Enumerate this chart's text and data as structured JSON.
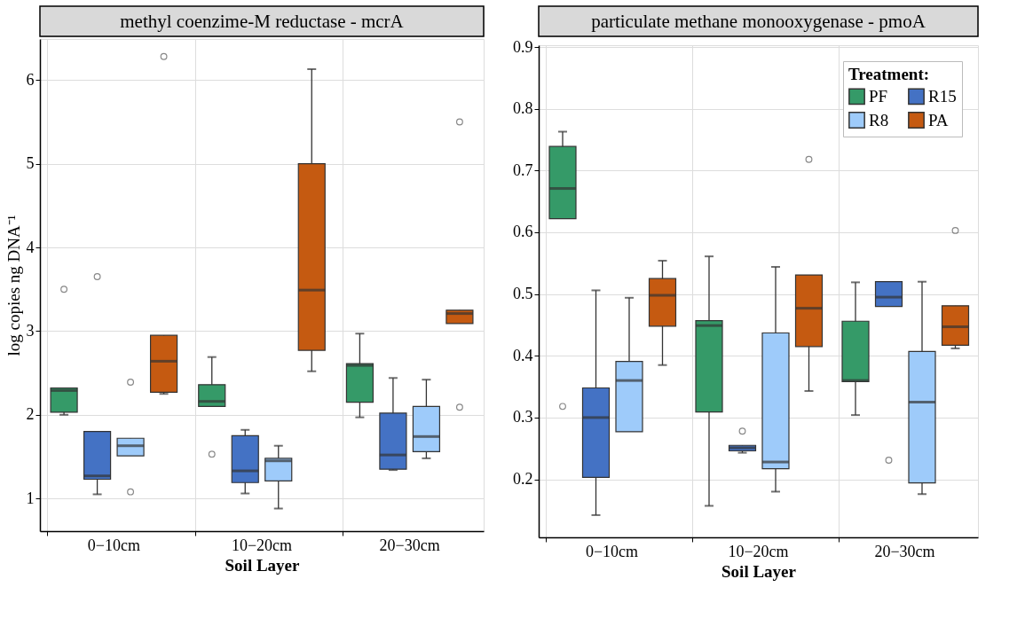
{
  "chart_data": [
    {
      "type": "box",
      "title": "methyl coenzime-M reductase - mcrA",
      "xlabel": "Soil Layer",
      "ylabel": "log copies ng DNA⁻¹",
      "categories": [
        "0−10cm",
        "10−20cm",
        "20−30cm"
      ],
      "ylim": [
        0.61,
        6.49
      ],
      "yticks": [
        1,
        2,
        3,
        4,
        5,
        6
      ],
      "grid": true,
      "series": [
        {
          "color": "#359a68",
          "boxes": [
            {
              "low": 2.0,
              "q1": 2.03,
              "median": 2.29,
              "q3": 2.32,
              "high": 2.32,
              "outliers": [
                3.5
              ]
            },
            {
              "low": 2.1,
              "q1": 2.1,
              "median": 2.16,
              "q3": 2.36,
              "high": 2.69,
              "outliers": [
                1.53
              ]
            },
            {
              "low": 1.97,
              "q1": 2.15,
              "median": 2.59,
              "q3": 2.61,
              "high": 2.97
            }
          ]
        },
        {
          "color": "#4472c4",
          "boxes": [
            {
              "low": 1.05,
              "q1": 1.23,
              "median": 1.27,
              "q3": 1.8,
              "high": 1.8,
              "outliers": [
                3.65
              ]
            },
            {
              "low": 1.06,
              "q1": 1.19,
              "median": 1.33,
              "q3": 1.75,
              "high": 1.82
            },
            {
              "low": 1.34,
              "q1": 1.35,
              "median": 1.52,
              "q3": 2.02,
              "high": 2.44
            }
          ]
        },
        {
          "color": "#9ecbfa",
          "boxes": [
            {
              "low": 1.51,
              "q1": 1.51,
              "median": 1.63,
              "q3": 1.72,
              "high": 1.72,
              "outliers": [
                2.39,
                1.08
              ]
            },
            {
              "low": 0.88,
              "q1": 1.21,
              "median": 1.45,
              "q3": 1.48,
              "high": 1.63
            },
            {
              "low": 1.48,
              "q1": 1.56,
              "median": 1.74,
              "q3": 2.1,
              "high": 2.42
            }
          ]
        },
        {
          "color": "#c55a11",
          "boxes": [
            {
              "low": 2.25,
              "q1": 2.27,
              "median": 2.64,
              "q3": 2.95,
              "high": 2.95,
              "outliers": [
                6.28
              ]
            },
            {
              "low": 2.52,
              "q1": 2.77,
              "median": 3.49,
              "q3": 5.0,
              "high": 6.13
            },
            {
              "low": 3.09,
              "q1": 3.09,
              "median": 3.21,
              "q3": 3.25,
              "high": 3.25,
              "outliers": [
                5.5,
                2.09
              ]
            }
          ]
        }
      ]
    },
    {
      "type": "box",
      "title": "particulate methane monooxygenase - pmoA",
      "xlabel": "Soil Layer",
      "categories": [
        "0−10cm",
        "10−20cm",
        "20−30cm"
      ],
      "ylim": [
        0.106,
        0.903
      ],
      "yticks": [
        0.2,
        0.3,
        0.4,
        0.5,
        0.6,
        0.7,
        0.8,
        0.9
      ],
      "grid": true,
      "legend": "top right",
      "legend_title": "Treatment:",
      "series": [
        {
          "name": "PF",
          "color": "#359a68",
          "boxes": [
            {
              "low": 0.622,
              "q1": 0.622,
              "median": 0.671,
              "q3": 0.739,
              "high": 0.763,
              "outliers": [
                0.318
              ]
            },
            {
              "low": 0.157,
              "q1": 0.309,
              "median": 0.449,
              "q3": 0.457,
              "high": 0.561
            },
            {
              "low": 0.304,
              "q1": 0.358,
              "median": 0.36,
              "q3": 0.456,
              "high": 0.519
            }
          ]
        },
        {
          "name": "R15",
          "color": "#4472c4",
          "boxes": [
            {
              "low": 0.142,
              "q1": 0.203,
              "median": 0.3,
              "q3": 0.348,
              "high": 0.506
            },
            {
              "low": 0.243,
              "q1": 0.246,
              "median": 0.251,
              "q3": 0.255,
              "high": 0.255,
              "outliers": [
                0.278
              ]
            },
            {
              "low": 0.48,
              "q1": 0.48,
              "median": 0.495,
              "q3": 0.52,
              "high": 0.52,
              "outliers": [
                0.231
              ]
            }
          ]
        },
        {
          "name": "R8",
          "color": "#9ecbfa",
          "boxes": [
            {
              "low": 0.277,
              "q1": 0.277,
              "median": 0.36,
              "q3": 0.391,
              "high": 0.494
            },
            {
              "low": 0.18,
              "q1": 0.217,
              "median": 0.228,
              "q3": 0.437,
              "high": 0.544
            },
            {
              "low": 0.176,
              "q1": 0.194,
              "median": 0.325,
              "q3": 0.407,
              "high": 0.52
            }
          ]
        },
        {
          "name": "PA",
          "color": "#c55a11",
          "boxes": [
            {
              "low": 0.385,
              "q1": 0.448,
              "median": 0.498,
              "q3": 0.525,
              "high": 0.554
            },
            {
              "low": 0.343,
              "q1": 0.415,
              "median": 0.477,
              "q3": 0.531,
              "high": 0.531,
              "outliers": [
                0.718
              ]
            },
            {
              "low": 0.412,
              "q1": 0.417,
              "median": 0.447,
              "q3": 0.481,
              "high": 0.481,
              "outliers": [
                0.603
              ]
            }
          ]
        }
      ]
    }
  ]
}
